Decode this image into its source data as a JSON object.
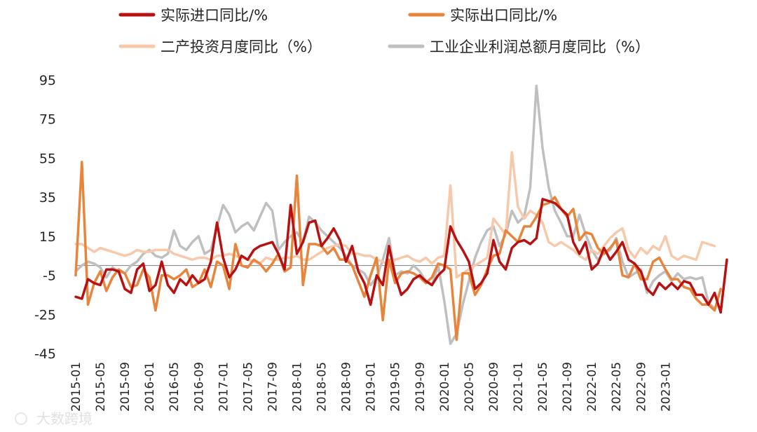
{
  "chart_data": {
    "type": "line",
    "title": "",
    "xlabel": "",
    "ylabel": "",
    "ylim": [
      -45,
      95
    ],
    "yticks": [
      95,
      75,
      55,
      35,
      15,
      -5,
      -25,
      -45
    ],
    "grid": false,
    "legend_position": "top",
    "x_tick_labels": [
      "2015-01",
      "2015-05",
      "2015-09",
      "2016-01",
      "2016-05",
      "2016-09",
      "2017-01",
      "2017-05",
      "2017-09",
      "2018-01",
      "2018-05",
      "2018-09",
      "2019-01",
      "2019-05",
      "2019-09",
      "2020-01",
      "2020-05",
      "2020-09",
      "2021-01",
      "2021-05",
      "2021-09",
      "2022-01",
      "2022-05",
      "2022-09",
      "2023-01"
    ],
    "x_start": "2015-01",
    "x_end": "2023-02",
    "series": [
      {
        "name": "实际进口同比/%",
        "color": "#B81111",
        "values": [
          -16,
          -17,
          -7,
          -9,
          -10,
          -2,
          -2,
          -3,
          -12,
          -14,
          -2,
          1,
          -13,
          -10,
          2,
          -10,
          -14,
          -7,
          -10,
          -5,
          -9,
          -7,
          2,
          22,
          4,
          -6,
          -2,
          5,
          3,
          8,
          10,
          11,
          12,
          6,
          -2,
          31,
          6,
          12,
          22,
          23,
          10,
          14,
          19,
          13,
          2,
          10,
          -3,
          -9,
          -20,
          -5,
          -10,
          10,
          -5,
          -15,
          -12,
          -7,
          -5,
          -8,
          -10,
          -5,
          -2,
          20,
          13,
          8,
          2,
          -12,
          -9,
          -4,
          13,
          2,
          -2,
          9,
          12,
          13,
          11,
          14,
          34,
          33,
          32,
          29,
          26,
          12,
          6,
          12,
          -2,
          1,
          9,
          3,
          7,
          12,
          3,
          1,
          -3,
          -12,
          -15,
          -9,
          -12,
          -9,
          -12,
          -8,
          -9,
          -15,
          -15,
          -20,
          -14,
          -24,
          3
        ]
      },
      {
        "name": "实际出口同比/%",
        "color": "#E8853D",
        "values": [
          -5,
          53,
          -20,
          -9,
          -3,
          -13,
          -6,
          -2,
          -4,
          -11,
          -10,
          -2,
          -6,
          -23,
          -5,
          -5,
          -7,
          -5,
          -2,
          -11,
          -9,
          -2,
          -11,
          2,
          0,
          -12,
          11,
          0,
          -1,
          3,
          1,
          -3,
          1,
          6,
          -3,
          -1,
          46,
          -10,
          11,
          11,
          10,
          6,
          9,
          3,
          3,
          0,
          -8,
          -16,
          -5,
          4,
          -28,
          3,
          -9,
          -4,
          -3,
          -4,
          -6,
          -9,
          -6,
          1,
          0,
          -2,
          -38,
          -4,
          -4,
          -15,
          -10,
          -2,
          5,
          6,
          18,
          15,
          12,
          20,
          20,
          25,
          31,
          32,
          35,
          29,
          25,
          29,
          13,
          17,
          16,
          9,
          6,
          9,
          13,
          -5,
          -6,
          1,
          -7,
          -7,
          2,
          4,
          -2,
          -7,
          -7,
          -11,
          -12,
          -17,
          -20,
          -20,
          -23,
          -12
        ]
      },
      {
        "name": "二产投资月度同比（%）",
        "color": "#F7C9AA",
        "values": [
          11,
          11,
          9,
          7,
          9,
          8,
          7,
          6,
          5,
          6,
          8,
          7,
          7,
          8,
          8,
          8,
          6,
          5,
          4,
          3,
          4,
          4,
          3,
          5,
          5,
          6,
          5,
          4,
          3,
          2,
          1,
          4,
          3,
          3,
          4,
          4,
          5,
          3,
          3,
          5,
          7,
          9,
          10,
          11,
          10,
          6,
          6,
          5,
          5,
          3,
          2,
          0,
          3,
          4,
          5,
          3,
          2,
          4,
          1,
          4,
          5,
          41,
          -6,
          -4,
          -2,
          0,
          2,
          4,
          24,
          20,
          16,
          58,
          30,
          24,
          28,
          26,
          22,
          12,
          10,
          12,
          10,
          8,
          5,
          3,
          8,
          6,
          10,
          14,
          17,
          19,
          8,
          4,
          9,
          6,
          10,
          8,
          15,
          5,
          3,
          5,
          4,
          3,
          12,
          11,
          10
        ]
      },
      {
        "name": "工业企业利润总额月度同比（%）",
        "color": "#BFBFBF",
        "values": [
          -3,
          0,
          2,
          1,
          -1,
          -6,
          -1,
          -3,
          -4,
          0,
          2,
          6,
          8,
          5,
          4,
          6,
          18,
          10,
          8,
          12,
          15,
          6,
          8,
          20,
          31,
          26,
          17,
          20,
          22,
          18,
          25,
          32,
          28,
          8,
          12,
          15,
          17,
          12,
          25,
          22,
          18,
          15,
          12,
          9,
          5,
          0,
          -2,
          -4,
          -10,
          -6,
          3,
          14,
          -5,
          -3,
          -4,
          0,
          -3,
          -8,
          -10,
          0,
          -18,
          -40,
          -35,
          -20,
          -8,
          4,
          12,
          18,
          20,
          10,
          16,
          28,
          22,
          25,
          40,
          92,
          60,
          40,
          28,
          22,
          15,
          15,
          26,
          16,
          8,
          3,
          6,
          8,
          14,
          2,
          -6,
          -4,
          -2,
          -14,
          -8,
          -5,
          -3,
          -8,
          -4,
          -7,
          -6,
          -7,
          -6,
          -19,
          -22
        ]
      }
    ]
  },
  "watermark": {
    "icon": "logo-icon",
    "text": "大数跨境"
  }
}
